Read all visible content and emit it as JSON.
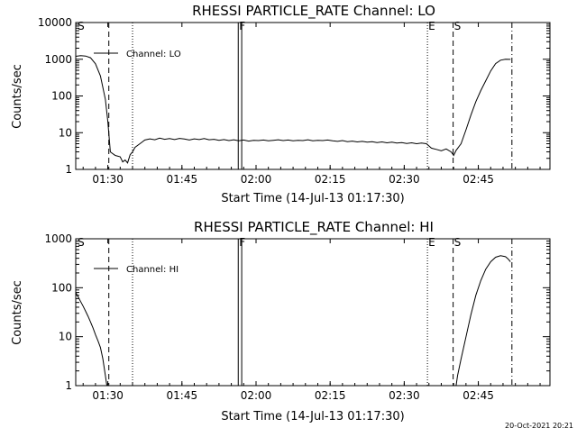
{
  "footer": {
    "timestamp": "20-Oct-2021 20:21"
  },
  "chart_data": [
    {
      "type": "line",
      "title": "RHESSI PARTICLE_RATE Channel: LO",
      "xlabel": "Start Time (14-Jul-13 01:17:30)",
      "ylabel": "Counts/sec",
      "x_unit": "minutes since 01:17:30",
      "xlim": [
        6,
        102
      ],
      "ylim": [
        1,
        10000
      ],
      "yscale": "log",
      "x_ticks": [
        {
          "label": "01:30",
          "value": 12.5
        },
        {
          "label": "01:45",
          "value": 27.5
        },
        {
          "label": "02:00",
          "value": 42.5
        },
        {
          "label": "02:15",
          "value": 57.5
        },
        {
          "label": "02:30",
          "value": 72.5
        },
        {
          "label": "02:45",
          "value": 87.5
        }
      ],
      "y_ticks": [
        {
          "label": "1",
          "value": 1
        },
        {
          "label": "10",
          "value": 10
        },
        {
          "label": "100",
          "value": 100
        },
        {
          "label": "1000",
          "value": 1000
        },
        {
          "label": "10000",
          "value": 10000
        }
      ],
      "legend": {
        "label": "Channel: LO",
        "position": "top-left"
      },
      "markers": [
        {
          "label": "S",
          "value": 6.2,
          "style": "none"
        },
        {
          "label": "",
          "value": 12.7,
          "style": "dashed"
        },
        {
          "label": "",
          "value": 17.5,
          "style": "dotted"
        },
        {
          "label": "F",
          "value": 38.9,
          "style": "solid"
        },
        {
          "label": "",
          "value": 39.6,
          "style": "solid"
        },
        {
          "label": "E",
          "value": 77.2,
          "style": "dotted"
        },
        {
          "label": "S",
          "value": 82.4,
          "style": "dashed"
        },
        {
          "label": "",
          "value": 94.3,
          "style": "dashdot"
        }
      ],
      "series": [
        {
          "points": [
            [
              6.0,
              1200
            ],
            [
              7.0,
              1250
            ],
            [
              8.0,
              1220
            ],
            [
              9.0,
              1100
            ],
            [
              10.0,
              750
            ],
            [
              11.0,
              350
            ],
            [
              12.0,
              80
            ],
            [
              12.5,
              20
            ],
            [
              13.0,
              3
            ],
            [
              14.0,
              2.4
            ],
            [
              15.0,
              2.2
            ],
            [
              15.5,
              1.6
            ],
            [
              16.0,
              1.8
            ],
            [
              16.5,
              1.5
            ],
            [
              17.0,
              2.5
            ],
            [
              17.5,
              3
            ],
            [
              18.0,
              4
            ],
            [
              19.0,
              5
            ],
            [
              20,
              6.3
            ],
            [
              21,
              6.8
            ],
            [
              22,
              6.4
            ],
            [
              23,
              7.1
            ],
            [
              24,
              6.6
            ],
            [
              25,
              6.9
            ],
            [
              26,
              6.5
            ],
            [
              27,
              7.0
            ],
            [
              28,
              6.7
            ],
            [
              29,
              6.3
            ],
            [
              30,
              6.8
            ],
            [
              31,
              6.5
            ],
            [
              32,
              6.9
            ],
            [
              33,
              6.4
            ],
            [
              34,
              6.6
            ],
            [
              35,
              6.2
            ],
            [
              36,
              6.5
            ],
            [
              37,
              6.1
            ],
            [
              38,
              6.4
            ],
            [
              39,
              6.0
            ],
            [
              40,
              6.3
            ],
            [
              41,
              5.9
            ],
            [
              42,
              6.2
            ],
            [
              43,
              6.1
            ],
            [
              44,
              6.3
            ],
            [
              45,
              6.0
            ],
            [
              46,
              6.2
            ],
            [
              47,
              6.4
            ],
            [
              48,
              6.1
            ],
            [
              49,
              6.3
            ],
            [
              50,
              6.0
            ],
            [
              51,
              6.2
            ],
            [
              52,
              6.1
            ],
            [
              53,
              6.4
            ],
            [
              54,
              6.0
            ],
            [
              55,
              6.2
            ],
            [
              56,
              6.1
            ],
            [
              57,
              6.3
            ],
            [
              58,
              6.0
            ],
            [
              59,
              5.8
            ],
            [
              60,
              6.1
            ],
            [
              61,
              5.7
            ],
            [
              62,
              5.9
            ],
            [
              63,
              5.6
            ],
            [
              64,
              5.8
            ],
            [
              65,
              5.5
            ],
            [
              66,
              5.7
            ],
            [
              67,
              5.4
            ],
            [
              68,
              5.6
            ],
            [
              69,
              5.3
            ],
            [
              70,
              5.5
            ],
            [
              71,
              5.2
            ],
            [
              72,
              5.4
            ],
            [
              73,
              5.1
            ],
            [
              74,
              5.3
            ],
            [
              75,
              5.0
            ],
            [
              76,
              5.2
            ],
            [
              77,
              5.0
            ],
            [
              78,
              3.8
            ],
            [
              79,
              3.5
            ],
            [
              80,
              3.2
            ],
            [
              81,
              3.6
            ],
            [
              82,
              3.0
            ],
            [
              82.5,
              2.4
            ],
            [
              83,
              3.3
            ],
            [
              84,
              5
            ],
            [
              85,
              12
            ],
            [
              86,
              30
            ],
            [
              87,
              70
            ],
            [
              88,
              140
            ],
            [
              89,
              260
            ],
            [
              90,
              480
            ],
            [
              91,
              760
            ],
            [
              92,
              940
            ],
            [
              93,
              1000
            ],
            [
              94,
              990
            ]
          ]
        }
      ]
    },
    {
      "type": "line",
      "title": "RHESSI PARTICLE_RATE Channel: HI",
      "xlabel": "Start Time (14-Jul-13 01:17:30)",
      "ylabel": "Counts/sec",
      "x_unit": "minutes since 01:17:30",
      "xlim": [
        6,
        102
      ],
      "ylim": [
        1,
        1000
      ],
      "yscale": "log",
      "x_ticks": [
        {
          "label": "01:30",
          "value": 12.5
        },
        {
          "label": "01:45",
          "value": 27.5
        },
        {
          "label": "02:00",
          "value": 42.5
        },
        {
          "label": "02:15",
          "value": 57.5
        },
        {
          "label": "02:30",
          "value": 72.5
        },
        {
          "label": "02:45",
          "value": 87.5
        }
      ],
      "y_ticks": [
        {
          "label": "1",
          "value": 1
        },
        {
          "label": "10",
          "value": 10
        },
        {
          "label": "100",
          "value": 100
        },
        {
          "label": "1000",
          "value": 1000
        }
      ],
      "legend": {
        "label": "Channel: HI",
        "position": "top-left"
      },
      "markers": [
        {
          "label": "S",
          "value": 6.2,
          "style": "none"
        },
        {
          "label": "",
          "value": 12.7,
          "style": "dashed"
        },
        {
          "label": "",
          "value": 17.5,
          "style": "dotted"
        },
        {
          "label": "F",
          "value": 38.9,
          "style": "solid"
        },
        {
          "label": "",
          "value": 39.6,
          "style": "solid"
        },
        {
          "label": "E",
          "value": 77.2,
          "style": "dotted"
        },
        {
          "label": "S",
          "value": 82.4,
          "style": "dashed"
        },
        {
          "label": "",
          "value": 94.3,
          "style": "dashdot"
        }
      ],
      "series": [
        {
          "points": [
            [
              6.0,
              80
            ],
            [
              6.5,
              65
            ],
            [
              7.0,
              52
            ],
            [
              7.5,
              42
            ],
            [
              8.0,
              33
            ],
            [
              8.5,
              26
            ],
            [
              9.0,
              20
            ],
            [
              9.5,
              15
            ],
            [
              10.0,
              11
            ],
            [
              10.5,
              8.2
            ],
            [
              11.0,
              6.0
            ],
            [
              11.5,
              3.5
            ],
            [
              12.0,
              1.6
            ],
            [
              12.3,
              1.0
            ]
          ]
        },
        {
          "points": [
            [
              83.0,
              1.0
            ],
            [
              83.3,
              1.6
            ],
            [
              84,
              3.5
            ],
            [
              85,
              10
            ],
            [
              86,
              28
            ],
            [
              87,
              70
            ],
            [
              88,
              140
            ],
            [
              89,
              240
            ],
            [
              90,
              340
            ],
            [
              91,
              420
            ],
            [
              92,
              450
            ],
            [
              93,
              430
            ],
            [
              93.5,
              390
            ],
            [
              94,
              340
            ]
          ]
        }
      ]
    }
  ]
}
